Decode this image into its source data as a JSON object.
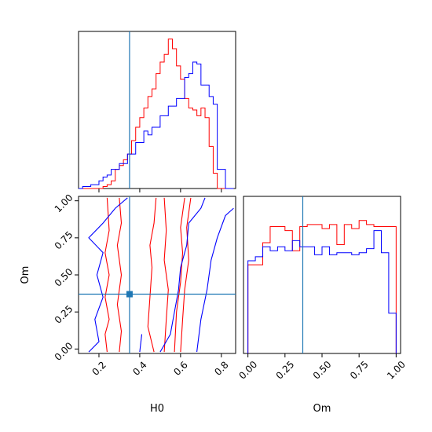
{
  "chart_data": {
    "type": "corner",
    "truth": {
      "H0": 0.35,
      "Om": 0.37
    },
    "series_colors": [
      "#ff0000",
      "#0000ff"
    ],
    "truth_color": "#1f77b4",
    "panels": {
      "hist_H0": {
        "type": "histogram",
        "xlim": [
          0.1,
          0.87
        ],
        "bin_edges": [
          0.1,
          0.12,
          0.14,
          0.16,
          0.18,
          0.2,
          0.22,
          0.24,
          0.26,
          0.28,
          0.3,
          0.32,
          0.34,
          0.36,
          0.38,
          0.4,
          0.42,
          0.44,
          0.46,
          0.48,
          0.5,
          0.52,
          0.54,
          0.56,
          0.58,
          0.6,
          0.62,
          0.64,
          0.66,
          0.68,
          0.7,
          0.72,
          0.74,
          0.76,
          0.78,
          0.8,
          0.82,
          0.84,
          0.86
        ],
        "series": [
          {
            "values": [
              0,
              0,
              0,
              0,
              0,
              1,
              2,
              3,
              5,
              10,
              10,
              13,
              20,
              22,
              24,
              31,
              35,
              38,
              40,
              50,
              58,
              65,
              66,
              74,
              72,
              78,
              65,
              60,
              48,
              30,
              12,
              3,
              0,
              0,
              0,
              0,
              0,
              0
            ]
          },
          {
            "values": [
              0,
              0,
              0,
              0,
              0,
              0,
              0,
              0,
              0,
              0,
              0,
              0,
              0,
              0,
              0,
              0,
              0,
              0,
              0,
              0,
              0,
              0,
              0,
              0,
              0,
              0,
              0,
              0,
              0,
              0,
              0,
              0,
              0,
              0,
              0,
              0,
              0,
              0
            ]
          }
        ],
        "series_named": [
          {
            "values": [
              0,
              0,
              0,
              0,
              0,
              0,
              1,
              2,
              4,
              10,
              12,
              15,
              18,
              25,
              32,
              37,
              42,
              48,
              52,
              60,
              66,
              70,
              78,
              73,
              64,
              57,
              47,
              42,
              41,
              38,
              42,
              37,
              22,
              8,
              0,
              0,
              0,
              0
            ]
          }
        ],
        "red_counts": [
          0,
          0,
          0,
          0,
          0,
          0,
          1,
          2,
          4,
          10,
          12,
          15,
          18,
          25,
          32,
          37,
          42,
          48,
          52,
          60,
          66,
          70,
          78,
          73,
          64,
          57,
          47,
          42,
          41,
          38,
          42,
          37,
          22,
          8,
          0,
          0,
          0,
          0
        ],
        "blue_counts": [
          0,
          1,
          1,
          2,
          2,
          4,
          6,
          7,
          10,
          10,
          13,
          13,
          18,
          18,
          24,
          24,
          30,
          28,
          32,
          32,
          38,
          38,
          43,
          43,
          47,
          47,
          58,
          60,
          66,
          65,
          54,
          54,
          48,
          44,
          10,
          10,
          0,
          0
        ]
      },
      "hist_Om": {
        "type": "histogram",
        "xlim": [
          -0.03,
          1.03
        ],
        "bin_edges": [
          0.0,
          0.05,
          0.1,
          0.15,
          0.2,
          0.25,
          0.3,
          0.35,
          0.4,
          0.45,
          0.5,
          0.55,
          0.6,
          0.65,
          0.7,
          0.75,
          0.8,
          0.85,
          0.9,
          0.95,
          1.0
        ],
        "red_counts": [
          44,
          44,
          55,
          63,
          63,
          61,
          51,
          63,
          64,
          64,
          62,
          64,
          54,
          64,
          62,
          66,
          64,
          63,
          63,
          63
        ],
        "blue_counts": [
          46,
          48,
          53,
          51,
          53,
          51,
          56,
          53,
          53,
          49,
          53,
          49,
          50,
          50,
          49,
          50,
          52,
          61,
          50,
          20
        ]
      },
      "contour_H0_Om": {
        "type": "contour",
        "xlim": [
          0.1,
          0.87
        ],
        "ylim": [
          -0.03,
          1.03
        ],
        "xticks": [
          0.2,
          0.4,
          0.6,
          0.8
        ],
        "yticks": [
          0.0,
          0.25,
          0.5,
          0.75,
          1.0
        ]
      }
    },
    "tick_labels": {
      "H0": [
        "0.2",
        "0.4",
        "0.6",
        "0.8"
      ],
      "Om": [
        "0.00",
        "0.25",
        "0.50",
        "0.75",
        "1.00"
      ]
    },
    "xlabel_left": "H0",
    "xlabel_right": "Om",
    "ylabel": "Om"
  }
}
